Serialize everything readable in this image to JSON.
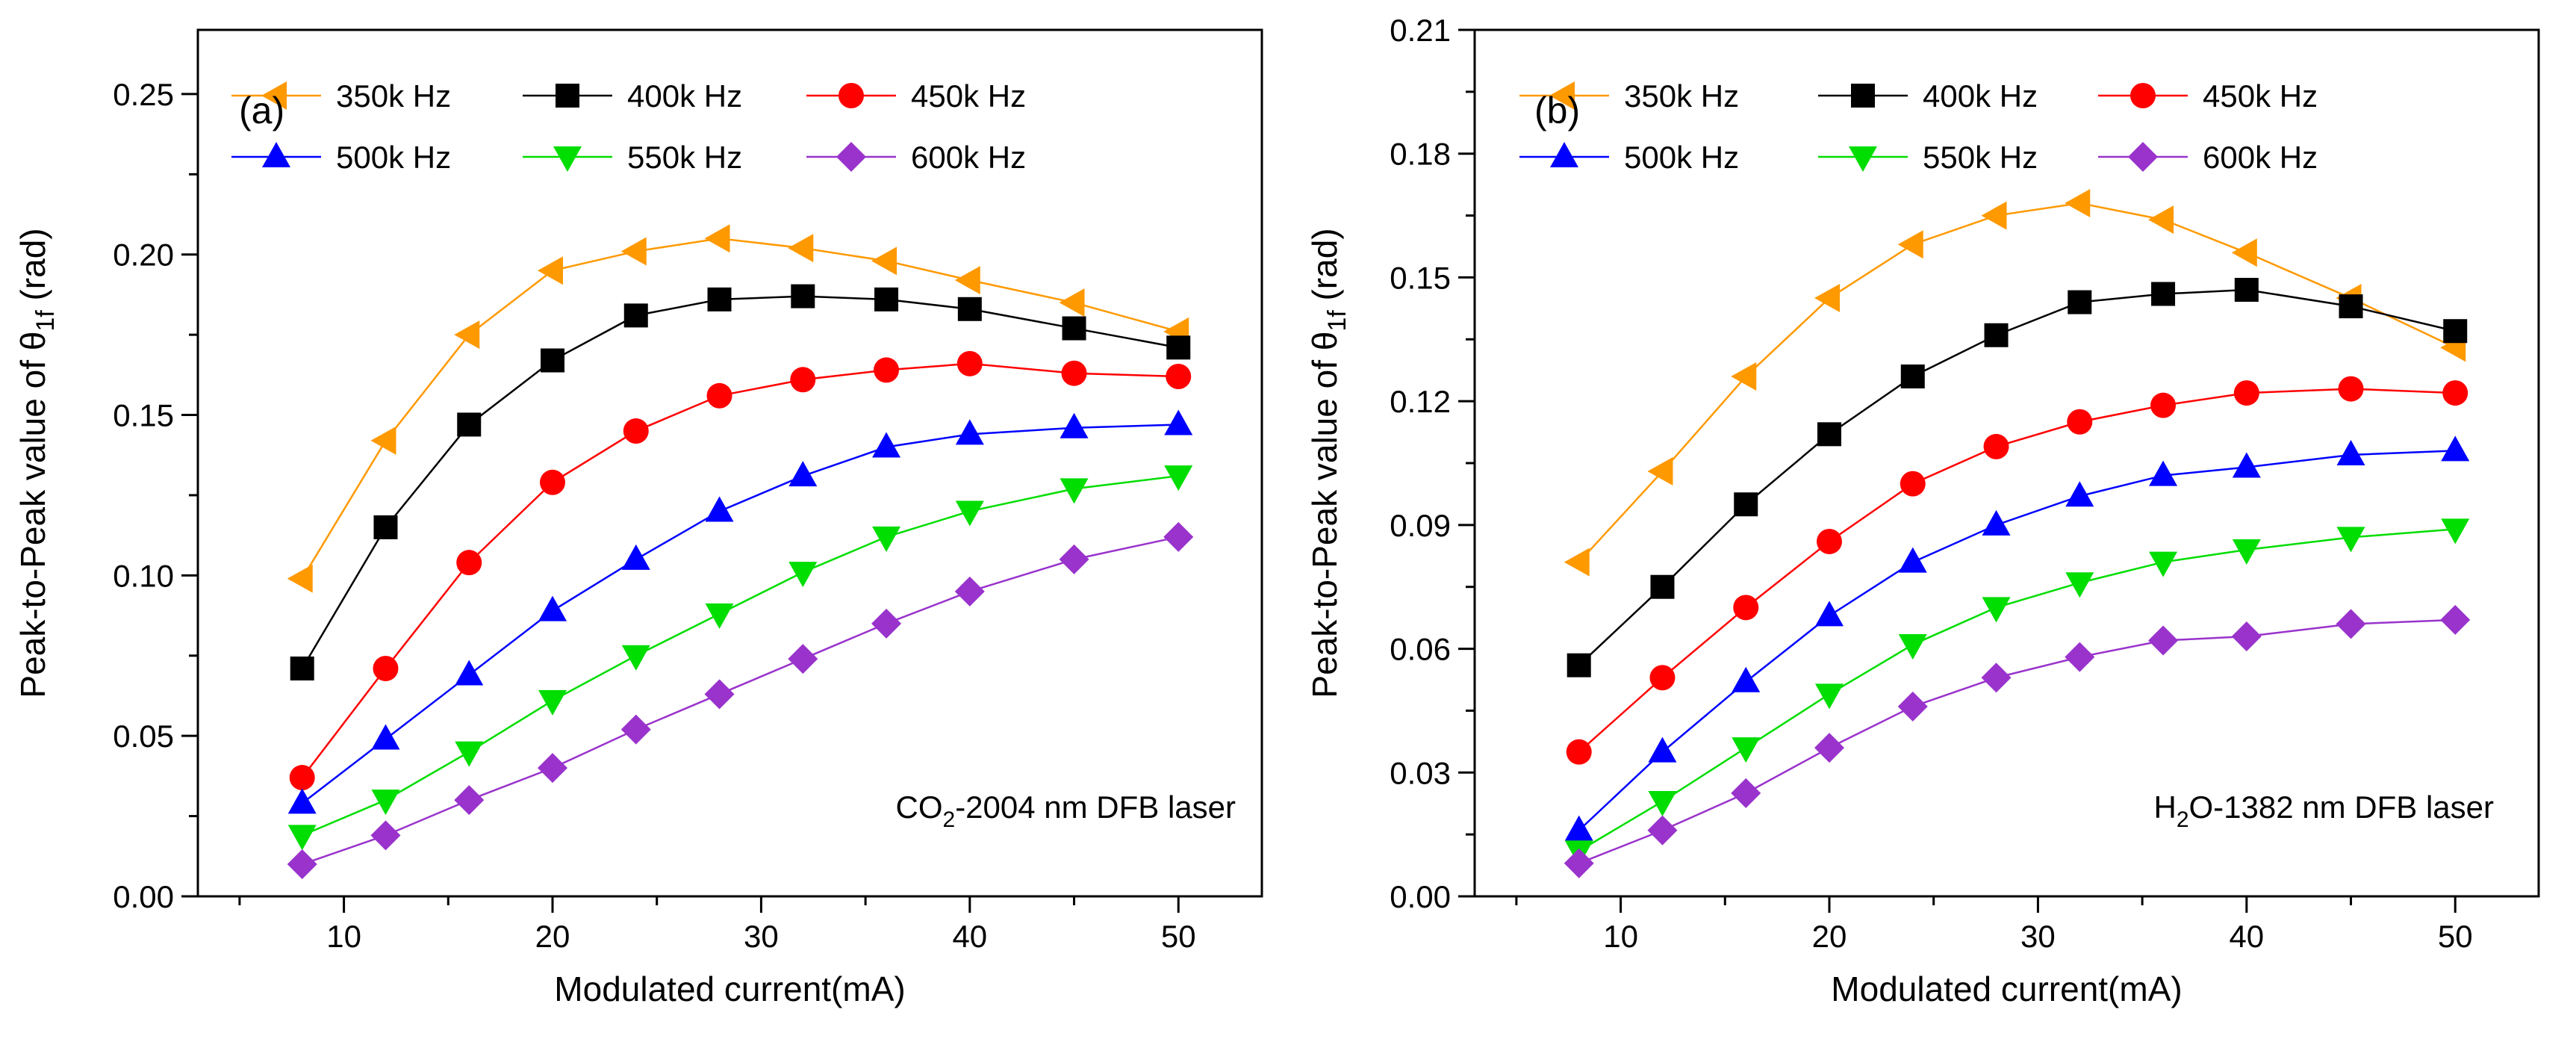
{
  "chart_data": [
    {
      "type": "line",
      "panel_label": "(a)",
      "annotation": {
        "main": "CO",
        "sub": "2",
        "rest": "-2004 nm DFB laser"
      },
      "xlabel": "Modulated current(mA)",
      "ylabel": {
        "pre": "Peak-to-Peak value of θ",
        "sub": "1f",
        "post": " (rad)"
      },
      "xlim": [
        3,
        54
      ],
      "ylim": [
        0,
        0.27
      ],
      "xticks": [
        10,
        20,
        30,
        40,
        50
      ],
      "xtick_labels": [
        "10",
        "20",
        "30",
        "40",
        "50"
      ],
      "yticks": [
        0,
        0.05,
        0.1,
        0.15,
        0.2,
        0.25
      ],
      "ytick_labels": [
        "0.00",
        "0.05",
        "0.10",
        "0.15",
        "0.20",
        "0.25"
      ],
      "x": [
        8,
        12,
        16,
        20,
        24,
        28,
        32,
        36,
        40,
        45,
        50
      ],
      "series": [
        {
          "name": "350k Hz",
          "color": "#FF9900",
          "marker": "triangle-left",
          "values": [
            0.099,
            0.142,
            0.175,
            0.195,
            0.201,
            0.205,
            0.202,
            0.198,
            0.192,
            0.185,
            0.176
          ]
        },
        {
          "name": "400k Hz",
          "color": "#000000",
          "marker": "square",
          "values": [
            0.071,
            0.115,
            0.147,
            0.167,
            0.181,
            0.186,
            0.187,
            0.186,
            0.183,
            0.177,
            0.171
          ]
        },
        {
          "name": "450k Hz",
          "color": "#FF0000",
          "marker": "circle",
          "values": [
            0.037,
            0.071,
            0.104,
            0.129,
            0.145,
            0.156,
            0.161,
            0.164,
            0.166,
            0.163,
            0.162
          ]
        },
        {
          "name": "500k Hz",
          "color": "#0000FF",
          "marker": "triangle-up",
          "values": [
            0.029,
            0.049,
            0.069,
            0.089,
            0.105,
            0.12,
            0.131,
            0.14,
            0.144,
            0.146,
            0.147
          ]
        },
        {
          "name": "550k Hz",
          "color": "#00DD00",
          "marker": "triangle-down",
          "values": [
            0.019,
            0.03,
            0.045,
            0.061,
            0.075,
            0.088,
            0.101,
            0.112,
            0.12,
            0.127,
            0.131
          ]
        },
        {
          "name": "600k Hz",
          "color": "#9933CC",
          "marker": "diamond",
          "values": [
            0.01,
            0.019,
            0.03,
            0.04,
            0.052,
            0.063,
            0.074,
            0.085,
            0.095,
            0.105,
            0.112
          ]
        }
      ]
    },
    {
      "type": "line",
      "panel_label": "(b)",
      "annotation": {
        "main": "H",
        "sub": "2",
        "rest": "O-1382 nm DFB laser"
      },
      "xlabel": "Modulated current(mA)",
      "ylabel": {
        "pre": "Peak-to-Peak value of θ",
        "sub": "1f",
        "post": " (rad)"
      },
      "xlim": [
        3,
        54
      ],
      "ylim": [
        0,
        0.21
      ],
      "xticks": [
        10,
        20,
        30,
        40,
        50
      ],
      "xtick_labels": [
        "10",
        "20",
        "30",
        "40",
        "50"
      ],
      "yticks": [
        0,
        0.03,
        0.06,
        0.09,
        0.12,
        0.15,
        0.18,
        0.21
      ],
      "ytick_labels": [
        "0.00",
        "0.03",
        "0.06",
        "0.09",
        "0.12",
        "0.15",
        "0.18",
        "0.21"
      ],
      "x": [
        8,
        12,
        16,
        20,
        24,
        28,
        32,
        36,
        40,
        45,
        50
      ],
      "series": [
        {
          "name": "350k Hz",
          "color": "#FF9900",
          "marker": "triangle-left",
          "values": [
            0.081,
            0.103,
            0.126,
            0.145,
            0.158,
            0.165,
            0.168,
            0.164,
            0.156,
            0.145,
            0.133
          ]
        },
        {
          "name": "400k Hz",
          "color": "#000000",
          "marker": "square",
          "values": [
            0.056,
            0.075,
            0.095,
            0.112,
            0.126,
            0.136,
            0.144,
            0.146,
            0.147,
            0.143,
            0.137
          ]
        },
        {
          "name": "450k Hz",
          "color": "#FF0000",
          "marker": "circle",
          "values": [
            0.035,
            0.053,
            0.07,
            0.086,
            0.1,
            0.109,
            0.115,
            0.119,
            0.122,
            0.123,
            0.122
          ]
        },
        {
          "name": "500k Hz",
          "color": "#0000FF",
          "marker": "triangle-up",
          "values": [
            0.016,
            0.035,
            0.052,
            0.068,
            0.081,
            0.09,
            0.097,
            0.102,
            0.104,
            0.107,
            0.108
          ]
        },
        {
          "name": "550k Hz",
          "color": "#00DD00",
          "marker": "triangle-down",
          "values": [
            0.011,
            0.023,
            0.036,
            0.049,
            0.061,
            0.07,
            0.076,
            0.081,
            0.084,
            0.087,
            0.089
          ]
        },
        {
          "name": "600k Hz",
          "color": "#9933CC",
          "marker": "diamond",
          "values": [
            0.008,
            0.016,
            0.025,
            0.036,
            0.046,
            0.053,
            0.058,
            0.062,
            0.063,
            0.066,
            0.067
          ]
        }
      ]
    }
  ]
}
